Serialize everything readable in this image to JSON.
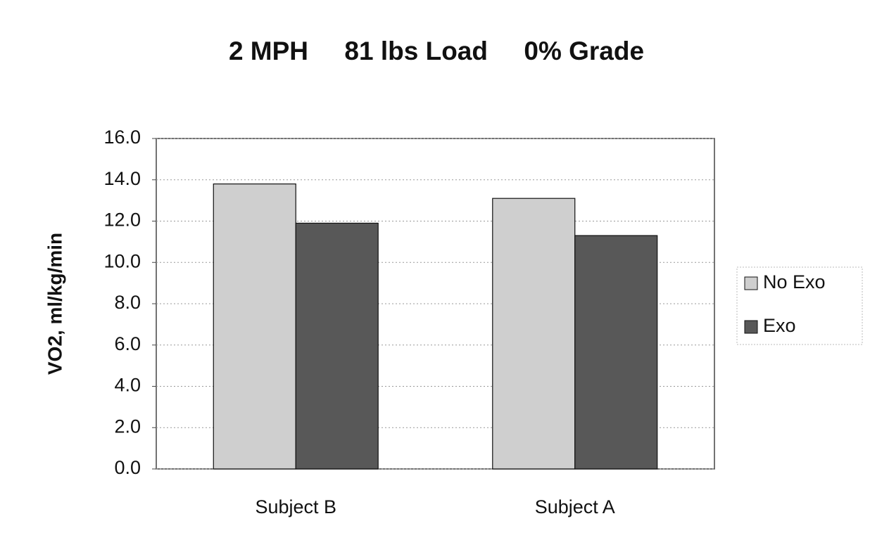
{
  "chart_data": {
    "type": "bar",
    "title": "2 MPH     81 lbs Load     0% Grade",
    "y_label": "VO2, ml/kg/min",
    "categories": [
      "Subject B",
      "Subject A"
    ],
    "series": [
      {
        "name": "No Exo",
        "color": "#cfcfcf",
        "values": [
          13.8,
          13.1
        ]
      },
      {
        "name": "Exo",
        "color": "#585858",
        "values": [
          11.9,
          11.3
        ]
      }
    ],
    "ylim": [
      0,
      16
    ],
    "yticks": [
      {
        "value": 0,
        "label": "0.0"
      },
      {
        "value": 2,
        "label": "2.0"
      },
      {
        "value": 4,
        "label": "4.0"
      },
      {
        "value": 6,
        "label": "6.0"
      },
      {
        "value": 8,
        "label": "8.0"
      },
      {
        "value": 10,
        "label": "10.0"
      },
      {
        "value": 12,
        "label": "12.0"
      },
      {
        "value": 14,
        "label": "14.0"
      },
      {
        "value": 16,
        "label": "16.0"
      }
    ],
    "grid": true,
    "legend": "right"
  }
}
